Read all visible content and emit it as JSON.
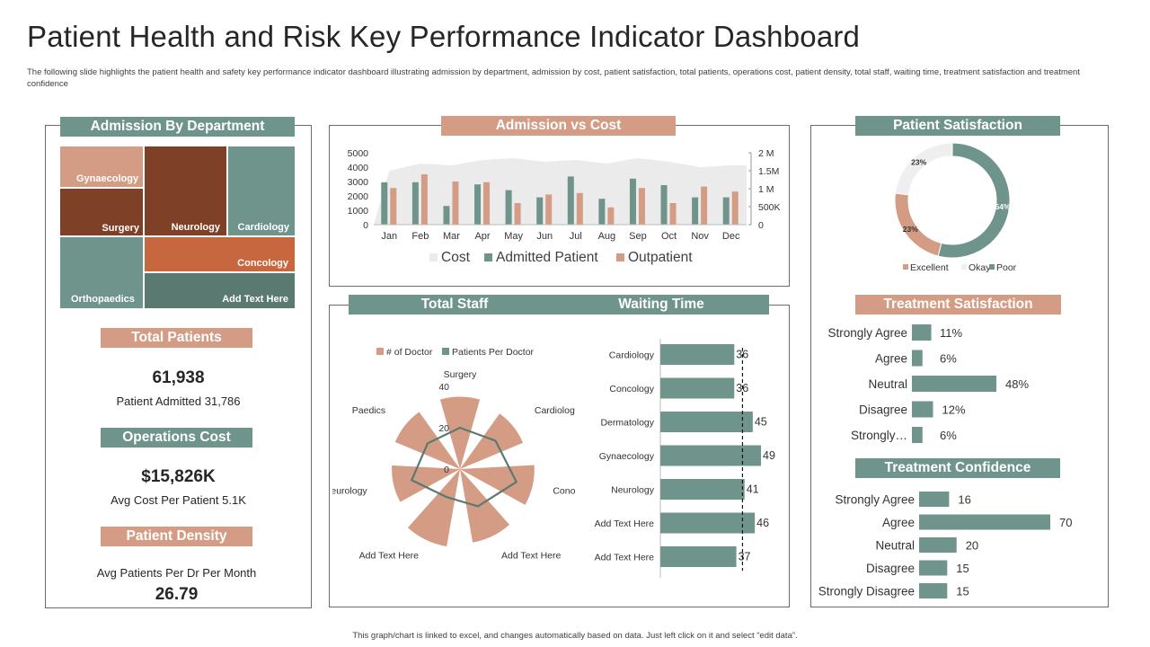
{
  "page": {
    "title": "Patient Health and Risk Key Performance Indicator Dashboard",
    "subtitle": "The following slide highlights the patient health and safety key performance indicator dashboard illustrating admission by department, admission by cost, patient satisfaction, total patients, operations cost, patient density, total staff, waiting time, treatment satisfaction and treatment confidence",
    "footer": "This graph/chart is linked to excel, and changes automatically based on data. Just left click on it and select “edit data”."
  },
  "colors": {
    "teal": "#6f948c",
    "salmon": "#d49c84",
    "brown": "#7f4028",
    "orange": "#c6673f",
    "dark_teal": "#5a7a71",
    "cost_grey": "#ebebeb"
  },
  "admission_by_department": {
    "header": "Admission By Department",
    "cells": {
      "gynaecology": "Gynaecology",
      "surgery": "Surgery",
      "neurology": "Neurology",
      "cardiology": "Cardiology",
      "concology": "Concology",
      "orthopaedics": "Orthopaedics",
      "add_text": "Add Text Here"
    }
  },
  "total_patients": {
    "header": "Total Patients",
    "value": "61,938",
    "sub": "Patient Admitted 31,786"
  },
  "operations_cost": {
    "header": "Operations Cost",
    "value": "$15,826K",
    "sub": "Avg Cost Per Patient 5.1K"
  },
  "patient_density": {
    "header": "Patient Density",
    "sub": "Avg Patients Per Dr Per Month",
    "value": "26.79"
  },
  "admission_vs_cost": {
    "header": "Admission vs Cost"
  },
  "total_staff": {
    "header": "Total Staff"
  },
  "waiting_time": {
    "header": "Waiting Time"
  },
  "patient_satisfaction": {
    "header": "Patient Satisfaction"
  },
  "treatment_satisfaction": {
    "header": "Treatment Satisfaction"
  },
  "treatment_confidence": {
    "header": "Treatment Confidence"
  },
  "chart_data": [
    {
      "id": "admission-vs-cost",
      "type": "bar",
      "categories": [
        "Jan",
        "Feb",
        "Mar",
        "Apr",
        "May",
        "Jun",
        "Jul",
        "Aug",
        "Sep",
        "Oct",
        "Nov",
        "Dec"
      ],
      "series": [
        {
          "name": "Cost",
          "axis": "right",
          "type": "area",
          "values": [
            1500000,
            1700000,
            1650000,
            1800000,
            1850000,
            1750000,
            1800000,
            1700000,
            1850000,
            1750000,
            1600000,
            1650000
          ]
        },
        {
          "name": "Admitted Patient",
          "axis": "left",
          "values": [
            2950,
            2950,
            1300,
            2800,
            2400,
            1900,
            3350,
            1800,
            3200,
            2750,
            1900,
            1900
          ]
        },
        {
          "name": "Outpatient",
          "axis": "left",
          "values": [
            2550,
            3500,
            3000,
            2950,
            1500,
            2100,
            2200,
            1200,
            2550,
            1500,
            2650,
            2300
          ]
        }
      ],
      "yticks_left": [
        "0",
        "1000",
        "2000",
        "3000",
        "4000",
        "5000"
      ],
      "yticks_right": [
        "0",
        "500K",
        "1 M",
        "1.5M",
        "2 M"
      ],
      "ylim_left": [
        0,
        5000
      ],
      "ylim_right": [
        0,
        2000000
      ],
      "legend": [
        "Cost",
        "Admitted Patient",
        "Outpatient"
      ],
      "legend_position": "bottom"
    },
    {
      "id": "total-staff",
      "type": "radar",
      "categories": [
        "Surgery",
        "Cardiology",
        "Conocology",
        "Add Text Here",
        "Add Text Here",
        "Neurology",
        "Paedics"
      ],
      "series": [
        {
          "name": "# of Doctor",
          "values": [
            35,
            33,
            36,
            36,
            38,
            33,
            34
          ]
        },
        {
          "name": "Patients Per Doctor",
          "values": [
            20,
            22,
            28,
            20,
            15,
            24,
            20
          ]
        }
      ],
      "rticks": [
        "0",
        "20",
        "40"
      ],
      "rlim": [
        0,
        40
      ],
      "legend_position": "top"
    },
    {
      "id": "waiting-time",
      "type": "bar",
      "orientation": "horizontal",
      "categories": [
        "Cardiology",
        "Concology",
        "Dermatology",
        "Gynaecology",
        "Neurology",
        "Add Text Here",
        "Add Text Here"
      ],
      "values": [
        36,
        36,
        45,
        49,
        41,
        46,
        37
      ],
      "labels": [
        "36",
        "36",
        "45",
        "49",
        "41",
        "46",
        "37"
      ],
      "target": 40,
      "xlim": [
        0,
        49
      ]
    },
    {
      "id": "patient-satisfaction",
      "type": "pie",
      "donut": true,
      "labels": [
        "Excellent",
        "Okay",
        "Poor"
      ],
      "values": [
        23,
        23,
        54
      ],
      "value_labels": [
        "23%",
        "23%",
        "54%"
      ],
      "legend_position": "bottom"
    },
    {
      "id": "treatment-satisfaction",
      "type": "bar",
      "orientation": "horizontal",
      "categories": [
        "Strongly Agree",
        "Agree",
        "Neutral",
        "Disagree",
        "Strongly…"
      ],
      "values": [
        11,
        6,
        48,
        12,
        6
      ],
      "labels": [
        "11%",
        "6%",
        "48%",
        "12%",
        "6%"
      ]
    },
    {
      "id": "treatment-confidence",
      "type": "bar",
      "orientation": "horizontal",
      "categories": [
        "Strongly Agree",
        "Agree",
        "Neutral",
        "Disagree",
        "Strongly Disagree"
      ],
      "values": [
        16,
        70,
        20,
        15,
        15
      ],
      "labels": [
        "16",
        "70",
        "20",
        "15",
        "15"
      ]
    }
  ]
}
